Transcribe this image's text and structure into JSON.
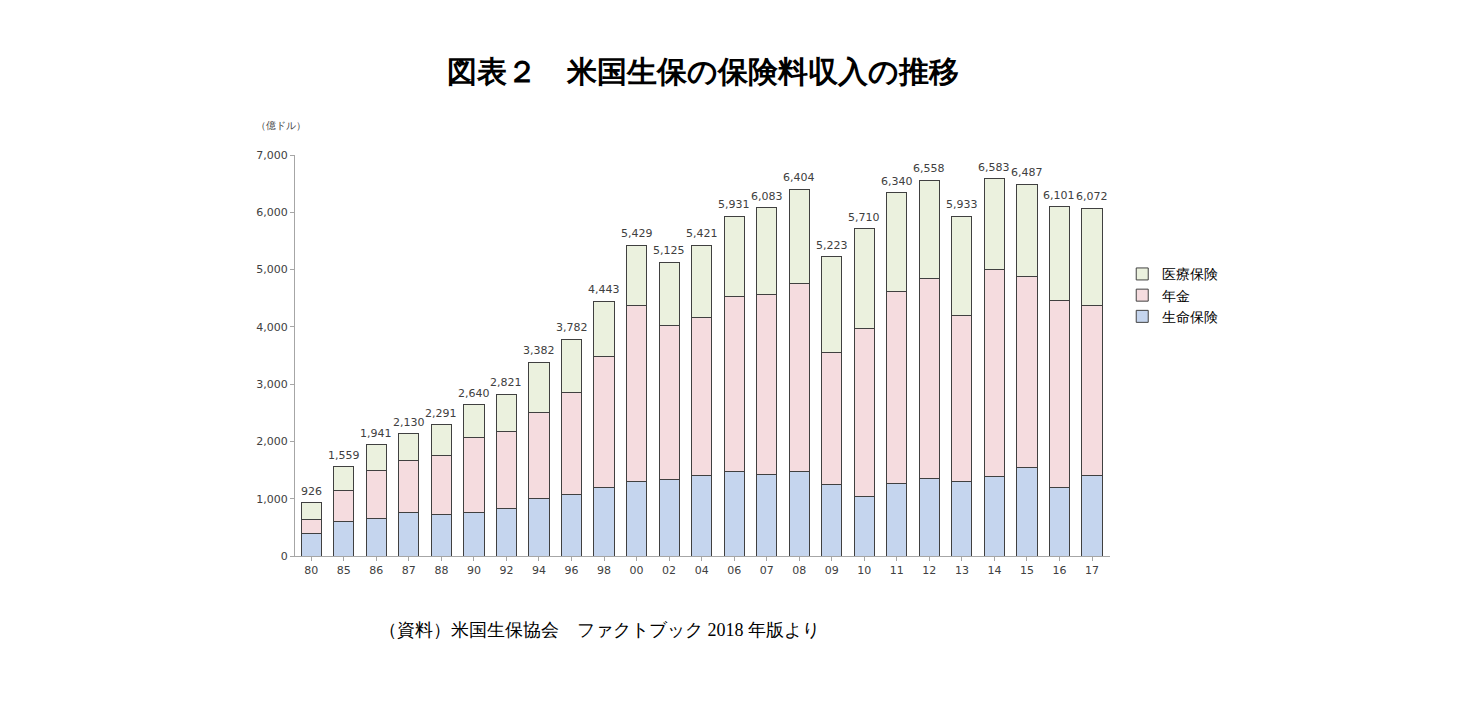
{
  "chart_data": {
    "type": "bar",
    "title": "図表２　米国生保の保険料収入の推移",
    "y_label": "（億ドル）",
    "note": "（資料）米国生保協会　ファクトブック 2018 年版より",
    "stacked": true,
    "grid": false,
    "legend": "right",
    "categories": [
      "80",
      "85",
      "86",
      "87",
      "88",
      "90",
      "92",
      "94",
      "96",
      "98",
      "00",
      "02",
      "04",
      "06",
      "07",
      "08",
      "09",
      "10",
      "11",
      "12",
      "13",
      "14",
      "15",
      "16",
      "17"
    ],
    "series": [
      {
        "name": "生命保険",
        "color": "#c5d5ee",
        "values": [
          400,
          600,
          660,
          760,
          730,
          760,
          830,
          1000,
          1080,
          1200,
          1300,
          1340,
          1400,
          1480,
          1430,
          1470,
          1250,
          1040,
          1270,
          1360,
          1300,
          1380,
          1550,
          1200,
          1410
        ]
      },
      {
        "name": "年金",
        "color": "#f5dcdf",
        "values": [
          240,
          540,
          840,
          900,
          1030,
          1300,
          1340,
          1510,
          1780,
          2290,
          3070,
          2690,
          2770,
          3050,
          3140,
          3280,
          2310,
          2940,
          3350,
          3480,
          2890,
          3630,
          3330,
          3260,
          2960
        ]
      },
      {
        "name": "医療保険",
        "color": "#ebf1de",
        "values": [
          286,
          419,
          441,
          470,
          531,
          580,
          651,
          872,
          922,
          953,
          1059,
          1095,
          1251,
          1401,
          1513,
          1654,
          1663,
          1730,
          1720,
          1718,
          1743,
          1573,
          1607,
          1641,
          1702
        ]
      }
    ],
    "totals": [
      926,
      1559,
      1941,
      2130,
      2291,
      2640,
      2821,
      3382,
      3782,
      4443,
      5429,
      5125,
      5421,
      5931,
      6083,
      6404,
      5223,
      5710,
      6340,
      6558,
      5933,
      6583,
      6487,
      6101,
      6072
    ],
    "total_labels": [
      "926",
      "1,559",
      "1,941",
      "2,130",
      "2,291",
      "2,640",
      "2,821",
      "3,382",
      "3,782",
      "4,443",
      "5,429",
      "5,125",
      "5,421",
      "5,931",
      "6,083",
      "6,404",
      "5,223",
      "5,710",
      "6,340",
      "6,558",
      "5,933",
      "6,583",
      "6,487",
      "6,101",
      "6,072"
    ],
    "ylim": [
      0,
      7000
    ],
    "yticks": [
      0,
      {
        "value": 1000,
        "label": "1,000"
      },
      {
        "value": 2000,
        "label": "2,000"
      },
      {
        "value": 3000,
        "label": "3,000"
      },
      {
        "value": 4000,
        "label": "4,000"
      },
      {
        "value": 5000,
        "label": "5,000"
      },
      {
        "value": 6000,
        "label": "6,000"
      },
      {
        "value": 7000,
        "label": "7,000"
      }
    ]
  }
}
